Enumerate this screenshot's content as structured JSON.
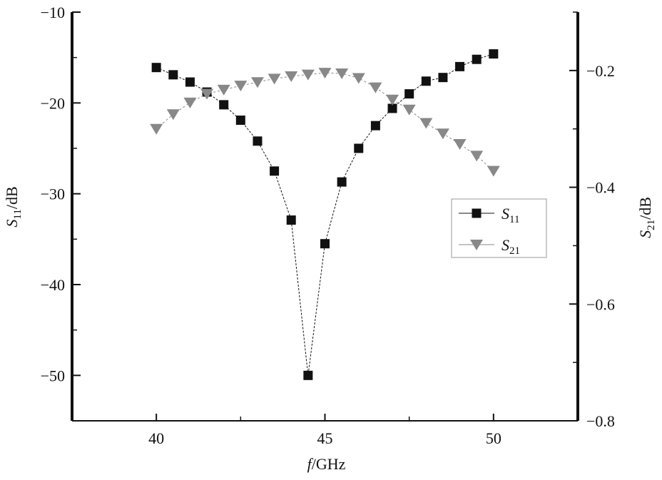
{
  "chart_data": {
    "type": "scatter",
    "xlabel": {
      "italic": "f",
      "rest": "/GHz"
    },
    "ylabel_left": {
      "italic": "S",
      "sub": "11",
      "rest": "/dB"
    },
    "ylabel_right": {
      "italic": "S",
      "sub": "21",
      "rest": "/dB"
    },
    "xlim": [
      37.5,
      52.5
    ],
    "ylim_left": [
      -55,
      -10
    ],
    "ylim_right": [
      -0.8,
      -0.1
    ],
    "x_ticks": [
      40,
      45,
      50
    ],
    "x_tick_labels": [
      "40",
      "45",
      "50"
    ],
    "y_left_ticks": [
      -10,
      -20,
      -30,
      -40,
      -50
    ],
    "y_left_tick_labels": [
      "−10",
      "−20",
      "−30",
      "−40",
      "−50"
    ],
    "y_right_ticks": [
      -0.2,
      -0.4,
      -0.6,
      -0.8
    ],
    "y_right_tick_labels": [
      "−0.2",
      "−0.4",
      "−0.6",
      "−0.8"
    ],
    "grid": false,
    "legend_position": "right-middle",
    "series": [
      {
        "name": "S11",
        "label_main": "S",
        "label_sub": "11",
        "axis": "left",
        "marker": "square",
        "color": "#111111",
        "x": [
          40,
          40.5,
          41,
          41.5,
          42,
          42.5,
          43,
          43.5,
          44,
          44.5,
          45,
          45.5,
          46,
          46.5,
          47,
          47.5,
          48,
          48.5,
          49,
          49.5,
          50
        ],
        "y": [
          -16.1,
          -16.9,
          -17.7,
          -18.8,
          -20.2,
          -21.9,
          -24.2,
          -27.5,
          -32.9,
          -50.0,
          -35.5,
          -28.7,
          -25.0,
          -22.5,
          -20.6,
          -19.0,
          -17.6,
          -17.2,
          -16.0,
          -15.2,
          -14.6
        ]
      },
      {
        "name": "S21",
        "label_main": "S",
        "label_sub": "21",
        "axis": "right",
        "marker": "triangle-down",
        "color": "#888888",
        "x": [
          40,
          40.5,
          41,
          41.5,
          42,
          42.5,
          43,
          43.5,
          44,
          44.5,
          45,
          45.5,
          46,
          46.5,
          47,
          47.5,
          48,
          48.5,
          49,
          49.5,
          50
        ],
        "y": [
          -0.3,
          -0.275,
          -0.255,
          -0.24,
          -0.233,
          -0.226,
          -0.22,
          -0.214,
          -0.21,
          -0.207,
          -0.204,
          -0.205,
          -0.213,
          -0.229,
          -0.25,
          -0.267,
          -0.29,
          -0.308,
          -0.326,
          -0.346,
          -0.372
        ]
      }
    ]
  }
}
